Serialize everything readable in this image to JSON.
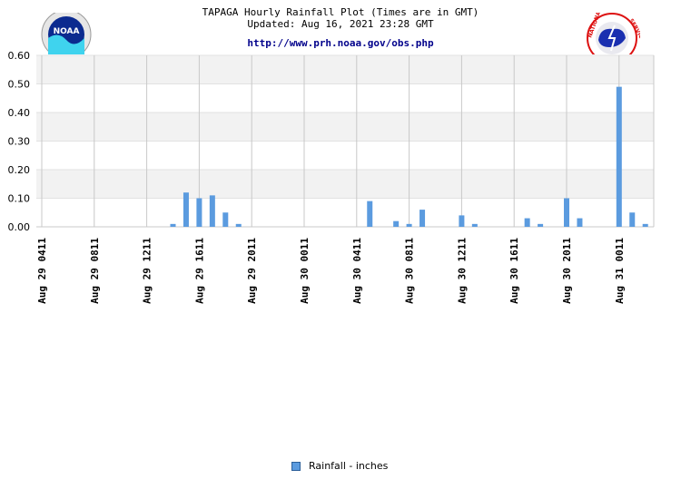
{
  "header": {
    "title": "TAPAGA Hourly Rainfall Plot (Times are in GMT)",
    "updated": "Updated: Aug 16, 2021 23:28 GMT",
    "url": "http://www.prh.noaa.gov/obs.php"
  },
  "logos": {
    "left": "noaa-logo",
    "right": "national-weather-service-logo"
  },
  "legend": {
    "label": "Rainfall - inches"
  },
  "colors": {
    "bar": "#5b9bdf",
    "band": "#f2f2f2",
    "grid": "#c8c8c8"
  },
  "chart_data": {
    "type": "bar",
    "title": "TAPAGA Hourly Rainfall Plot (Times are in GMT)",
    "ylim": [
      0,
      0.6
    ],
    "yticks": [
      "0.00",
      "0.10",
      "0.20",
      "0.30",
      "0.40",
      "0.50",
      "0.60"
    ],
    "xticks": [
      "Aug 29 0411",
      "Aug 29 0811",
      "Aug 29 1211",
      "Aug 29 1611",
      "Aug 29 2011",
      "Aug 30 0011",
      "Aug 30 0411",
      "Aug 30 0811",
      "Aug 30 1211",
      "Aug 30 1611",
      "Aug 30 2011",
      "Aug 31 0011"
    ],
    "series": [
      {
        "name": "Rainfall - inches",
        "points": [
          {
            "t": "Aug 29 1411",
            "v": 0.01
          },
          {
            "t": "Aug 29 1511",
            "v": 0.12
          },
          {
            "t": "Aug 29 1611",
            "v": 0.1
          },
          {
            "t": "Aug 29 1711",
            "v": 0.11
          },
          {
            "t": "Aug 29 1811",
            "v": 0.05
          },
          {
            "t": "Aug 29 1911",
            "v": 0.01
          },
          {
            "t": "Aug 30 0511",
            "v": 0.09
          },
          {
            "t": "Aug 30 0711",
            "v": 0.02
          },
          {
            "t": "Aug 30 0811",
            "v": 0.01
          },
          {
            "t": "Aug 30 0911",
            "v": 0.06
          },
          {
            "t": "Aug 30 1211",
            "v": 0.04
          },
          {
            "t": "Aug 30 1311",
            "v": 0.01
          },
          {
            "t": "Aug 30 1711",
            "v": 0.03
          },
          {
            "t": "Aug 30 1811",
            "v": 0.01
          },
          {
            "t": "Aug 30 2011",
            "v": 0.1
          },
          {
            "t": "Aug 30 2111",
            "v": 0.03
          },
          {
            "t": "Aug 31 0011",
            "v": 0.49
          },
          {
            "t": "Aug 31 0111",
            "v": 0.05
          },
          {
            "t": "Aug 31 0211",
            "v": 0.01
          }
        ]
      }
    ]
  }
}
